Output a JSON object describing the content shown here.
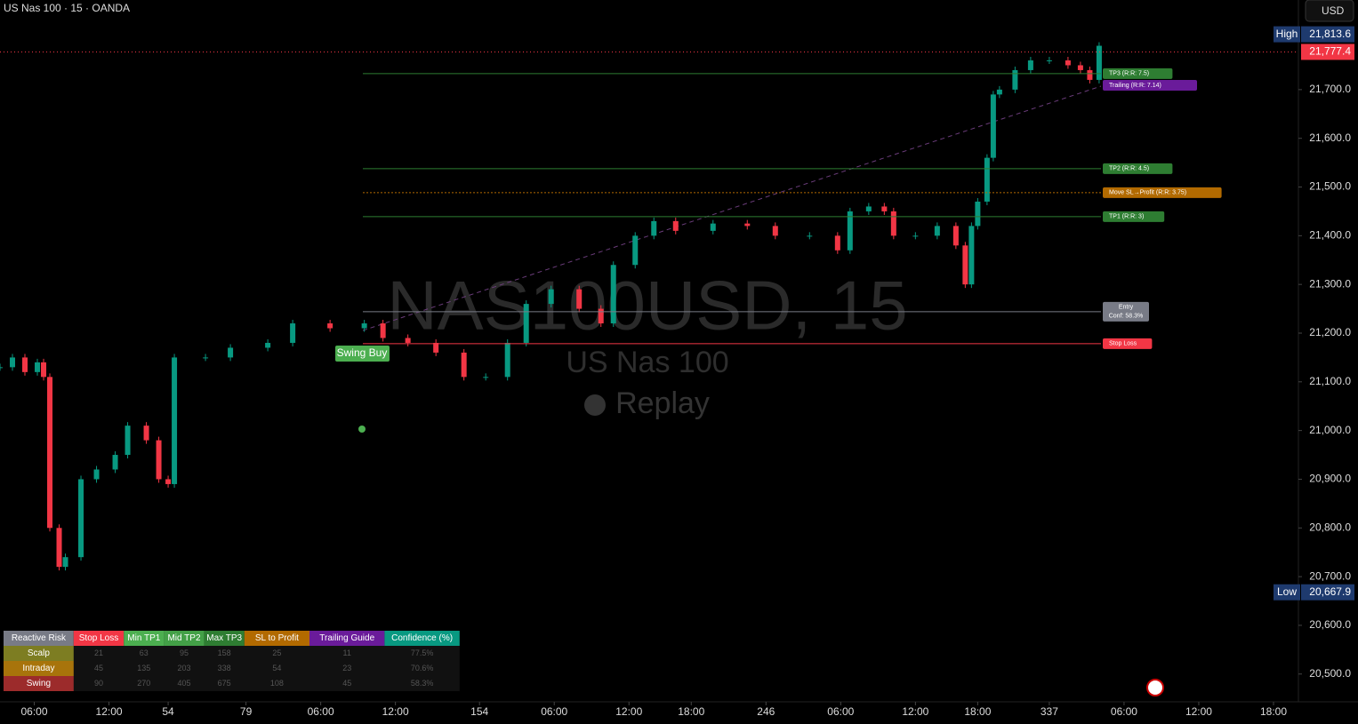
{
  "header": {
    "title": "US Nas 100 · 15 · OANDA",
    "currency": "USD"
  },
  "watermark": {
    "symbol": "NAS100USD, 15",
    "name": "US Nas 100",
    "mode": "Replay"
  },
  "chart_data": {
    "type": "candlestick",
    "up_color": "#089981",
    "down_color": "#f23645",
    "grid": false,
    "x": [
      0,
      4,
      8,
      12,
      14,
      16,
      19,
      21,
      26,
      31,
      37,
      41,
      47,
      51,
      54,
      56,
      66,
      74,
      86,
      94,
      106,
      117,
      123,
      131,
      140,
      149,
      156,
      163,
      169,
      177,
      186,
      193,
      197,
      204,
      210,
      217,
      229,
      240,
      249,
      260,
      269,
      273,
      279,
      284,
      287,
      294,
      301,
      307,
      310,
      312,
      314,
      317,
      319,
      321,
      326,
      331,
      337,
      343,
      347,
      350,
      353
    ],
    "values": [
      21130,
      21150,
      21120,
      21140,
      21110,
      20800,
      20720,
      20740,
      20900,
      20920,
      20950,
      21010,
      20980,
      20900,
      20890,
      21150,
      21150,
      21170,
      21180,
      21220,
      21210,
      21220,
      21190,
      21180,
      21160,
      21110,
      21110,
      21180,
      21260,
      21290,
      21250,
      21220,
      21340,
      21400,
      21430,
      21410,
      21425,
      21420,
      21400,
      21400,
      21370,
      21450,
      21460,
      21450,
      21400,
      21400,
      21420,
      21380,
      21300,
      21420,
      21470,
      21560,
      21690,
      21700,
      21740,
      21760,
      21760,
      21750,
      21740,
      21720,
      21790
    ],
    "xlim": [
      0,
      417
    ],
    "ylim": [
      20443,
      21884
    ],
    "xticks": [
      {
        "value": 11,
        "label": "06:00"
      },
      {
        "value": 35,
        "label": "12:00"
      },
      54,
      79,
      {
        "value": 103,
        "label": "06:00"
      },
      {
        "value": 127,
        "label": "12:00"
      },
      154,
      {
        "value": 178,
        "label": "06:00"
      },
      {
        "value": 202,
        "label": "12:00"
      },
      {
        "value": 222,
        "label": "18:00"
      },
      246,
      {
        "value": 270,
        "label": "06:00"
      },
      {
        "value": 294,
        "label": "12:00"
      },
      {
        "value": 314,
        "label": "18:00"
      },
      337,
      {
        "value": 361,
        "label": "06:00"
      },
      {
        "value": 385,
        "label": "12:00"
      },
      {
        "value": 409,
        "label": "18:00"
      }
    ],
    "yticks": [
      {
        "value": 20500,
        "label": "20,500.0"
      },
      {
        "value": 20600,
        "label": "20,600.0"
      },
      {
        "value": 20700,
        "label": "20,700.0"
      },
      {
        "value": 20800,
        "label": "20,800.0"
      },
      {
        "value": 20900,
        "label": "20,900.0"
      },
      {
        "value": 21000,
        "label": "21,000.0"
      },
      {
        "value": 21100,
        "label": "21,100.0"
      },
      {
        "value": 21200,
        "label": "21,200.0"
      },
      {
        "value": 21300,
        "label": "21,300.0"
      },
      {
        "value": 21400,
        "label": "21,400.0"
      },
      {
        "value": 21500,
        "label": "21,500.0"
      },
      {
        "value": 21600,
        "label": "21,600.0"
      },
      {
        "value": 21700,
        "label": "21,700.0"
      }
    ],
    "price_labels": [
      {
        "name": "High",
        "value": 21813.6,
        "label": "21,813.6",
        "color": "#1e3a6e"
      },
      {
        "value": 21777.4,
        "label": "21,777.4",
        "color": "#f23645"
      },
      {
        "name": "Low",
        "value": 20667.9,
        "label": "20,667.9",
        "color": "#1e3a6e"
      }
    ],
    "levels": [
      {
        "label": "TP3 (R:R: 7.5)",
        "value": 21732.8,
        "color": "#2e7d32",
        "line": "solid"
      },
      {
        "label": "Trailing (R:R: 7.14)",
        "value": 21709,
        "color": "#6a1b9a",
        "line": "none"
      },
      {
        "label": "TP2 (R:R: 4.5)",
        "value": 21537.7,
        "color": "#2e7d32",
        "line": "solid"
      },
      {
        "label": "Move SL→Profit (R:R: 3.75)",
        "value": 21488.4,
        "color": "#b26a00",
        "line": "dotted"
      },
      {
        "label": "TP1 (R:R: 3)",
        "value": 21439.2,
        "color": "#2e7d32",
        "line": "solid"
      },
      {
        "label": "Entry",
        "sublabel": "Conf: 58.3%",
        "value": 21244,
        "color": "#787b86",
        "line": "solid"
      },
      {
        "label": "Stop Loss",
        "value": 21178.4,
        "color": "#f23645",
        "line": "solid"
      }
    ],
    "signal": {
      "label": "Swing Buy",
      "color": "#4caf50"
    }
  },
  "table": {
    "header": [
      {
        "text": "Reactive Risk",
        "color": "#787b86"
      },
      {
        "text": "Stop Loss",
        "color": "#f23645"
      },
      {
        "text": "Min TP1",
        "color": "#4caf50"
      },
      {
        "text": "Mid TP2",
        "color": "#43a047"
      },
      {
        "text": "Max TP3",
        "color": "#2e7d32"
      },
      {
        "text": "SL to Profit",
        "color": "#b26a00"
      },
      {
        "text": "Trailing Guide",
        "color": "#6a1b9a"
      },
      {
        "text": "Confidence (%)",
        "color": "#089981"
      }
    ],
    "rows": [
      {
        "name": "Scalp",
        "color": "#7d7d22",
        "cells": [
          "21",
          "63",
          "95",
          "158",
          "25",
          "11",
          "77.5%"
        ]
      },
      {
        "name": "Intraday",
        "color": "#a8740b",
        "cells": [
          "45",
          "135",
          "203",
          "338",
          "54",
          "23",
          "70.6%"
        ]
      },
      {
        "name": "Swing",
        "color": "#9c2b2b",
        "cells": [
          "90",
          "270",
          "405",
          "675",
          "108",
          "45",
          "58.3%"
        ]
      }
    ]
  }
}
